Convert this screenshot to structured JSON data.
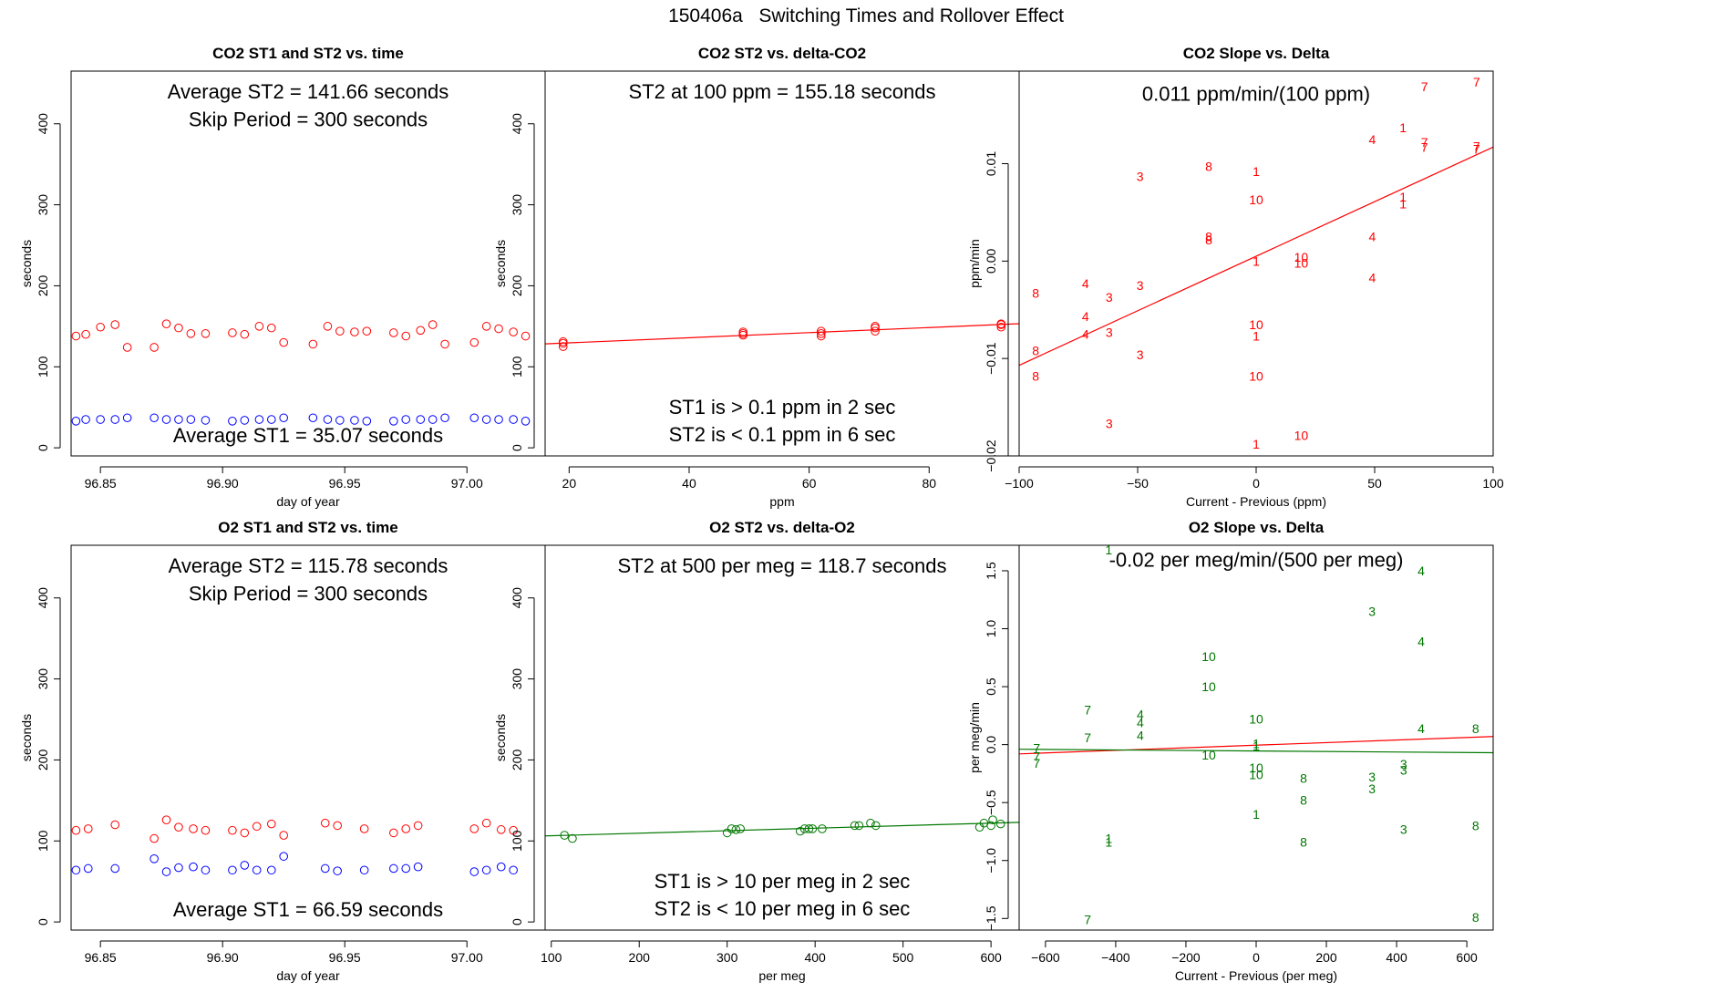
{
  "page_title": "150406a   Switching Times and Rollover Effect",
  "colors": {
    "red": "#ff0000",
    "blue": "#0000ff",
    "green": "#007700",
    "axis": "#000000"
  },
  "chart_data": [
    {
      "id": "co2-time",
      "type": "scatter",
      "title": "CO2 ST1 and ST2 vs. time",
      "xlabel": "day of year",
      "ylabel": "seconds",
      "xlim": [
        96.838,
        97.032
      ],
      "ylim": [
        -10,
        465
      ],
      "xticks": [
        96.85,
        96.9,
        96.95,
        97.0
      ],
      "xtick_labels": [
        "96.85",
        "96.90",
        "96.95",
        "97.00"
      ],
      "yticks": [
        0,
        100,
        200,
        300,
        400
      ],
      "ytick_labels": [
        "0",
        "100",
        "200",
        "300",
        "400"
      ],
      "annotations": [
        {
          "text": "Average ST2 =  141.66  seconds",
          "x": 96.935,
          "y": 440
        },
        {
          "text": "Skip Period =  300  seconds",
          "x": 96.935,
          "y": 406
        },
        {
          "text": "Average ST1 =  35.07  seconds",
          "x": 96.935,
          "y": 16
        }
      ],
      "series": [
        {
          "name": "ST2",
          "color": "#ff0000",
          "marker": "circle",
          "x": [
            96.84,
            96.844,
            96.85,
            96.856,
            96.861,
            96.872,
            96.877,
            96.882,
            96.887,
            96.893,
            96.904,
            96.909,
            96.915,
            96.92,
            96.925,
            96.937,
            96.943,
            96.948,
            96.954,
            96.959,
            96.97,
            96.975,
            96.981,
            96.986,
            96.991,
            97.003,
            97.008,
            97.013,
            97.019,
            97.024
          ],
          "y": [
            138,
            140,
            149,
            152,
            124,
            124,
            153,
            148,
            141,
            141,
            142,
            140,
            150,
            148,
            130,
            128,
            150,
            144,
            143,
            144,
            142,
            138,
            145,
            152,
            128,
            130,
            150,
            147,
            143,
            138
          ]
        },
        {
          "name": "ST1",
          "color": "#0000ff",
          "marker": "circle",
          "x": [
            96.84,
            96.844,
            96.85,
            96.856,
            96.861,
            96.872,
            96.877,
            96.882,
            96.887,
            96.893,
            96.904,
            96.909,
            96.915,
            96.92,
            96.925,
            96.937,
            96.943,
            96.948,
            96.954,
            96.959,
            96.97,
            96.975,
            96.981,
            96.986,
            96.991,
            97.003,
            97.008,
            97.013,
            97.019,
            97.024
          ],
          "y": [
            33,
            35,
            35,
            35,
            37,
            37,
            35,
            35,
            35,
            34,
            33,
            34,
            35,
            35,
            37,
            37,
            35,
            34,
            34,
            33,
            33,
            35,
            35,
            35,
            37,
            37,
            35,
            35,
            35,
            33
          ]
        }
      ]
    },
    {
      "id": "co2-st2-delta",
      "type": "scatter",
      "title": "CO2 ST2 vs. delta-CO2",
      "xlabel": "ppm",
      "ylabel": "seconds",
      "xlim": [
        16,
        95
      ],
      "ylim": [
        -10,
        465
      ],
      "xticks": [
        20,
        40,
        60,
        80
      ],
      "xtick_labels": [
        "20",
        "40",
        "60",
        "80"
      ],
      "yticks": [
        0,
        100,
        200,
        300,
        400
      ],
      "ytick_labels": [
        "0",
        "100",
        "200",
        "300",
        "400"
      ],
      "annotations": [
        {
          "text": "ST2 at 100 ppm =  155.18  seconds",
          "x": 55.5,
          "y": 440
        },
        {
          "text": "ST1 is > 0.1 ppm in 2 sec",
          "x": 55.5,
          "y": 51
        },
        {
          "text": "ST2 is < 0.1 ppm in 6 sec",
          "x": 55.5,
          "y": 17
        }
      ],
      "series": [
        {
          "name": "ST2",
          "color": "#ff0000",
          "marker": "circle",
          "x": [
            19,
            19,
            19,
            49,
            49,
            49,
            62,
            62,
            62,
            71,
            71,
            71,
            92,
            92,
            92
          ],
          "y": [
            125,
            129,
            131,
            139,
            141,
            143,
            138,
            141,
            144,
            144,
            148,
            150,
            149,
            152,
            153
          ]
        }
      ],
      "lines": [
        {
          "color": "#ff0000",
          "x": [
            16,
            95
          ],
          "y": [
            128.3,
            153.2
          ]
        }
      ]
    },
    {
      "id": "co2-slope",
      "type": "scatter",
      "title": "CO2 Slope vs. Delta",
      "xlabel": "Current - Previous (ppm)",
      "ylabel": "ppm/min",
      "xlim": [
        -100,
        100
      ],
      "ylim": [
        -0.02,
        0.0195
      ],
      "xticks": [
        -100,
        -50,
        0,
        50,
        100
      ],
      "xtick_labels": [
        "−100",
        "−50",
        "0",
        "50",
        "100"
      ],
      "yticks": [
        -0.02,
        -0.01,
        0.0,
        0.01
      ],
      "ytick_labels": [
        "−0.02",
        "−0.01",
        "0.00",
        "0.01"
      ],
      "annotations": [
        {
          "text": "0.011  ppm/min/(100 ppm)",
          "x": 0,
          "y": 0.0172
        }
      ],
      "series": [
        {
          "name": "labels",
          "color": "#ff0000",
          "marker": "text",
          "x": [
            -93,
            -93,
            -93,
            -72,
            -72,
            -72,
            -62,
            -62,
            -62,
            -49,
            -49,
            -49,
            -20,
            -20,
            -20,
            0,
            0,
            0,
            0,
            0,
            0,
            0,
            19,
            19,
            19,
            49,
            49,
            49,
            62,
            62,
            62,
            71,
            71,
            71,
            93,
            93,
            93
          ],
          "y": [
            -0.0033,
            -0.0092,
            -0.0118,
            -0.0023,
            -0.0057,
            -0.0075,
            -0.0037,
            -0.0073,
            -0.0167,
            -0.0025,
            -0.0096,
            0.0087,
            0.0097,
            0.0022,
            0.0025,
            0.0092,
            0.0063,
            -0.0065,
            -0.0077,
            -0.0118,
            -0.0188,
            0.0,
            0.0004,
            -0.0002,
            -0.0179,
            0.0125,
            0.0025,
            -0.0017,
            0.0137,
            0.0066,
            0.0059,
            0.0179,
            0.0122,
            0.0117,
            0.0184,
            0.0118,
            0.0115
          ],
          "labels": [
            "8",
            "8",
            "8",
            "4",
            "4",
            "4",
            "3",
            "3",
            "3",
            "3",
            "3",
            "3",
            "8",
            "8",
            "8",
            "1",
            "10",
            "10",
            "1",
            "10",
            "1",
            "1",
            "10",
            "10",
            "10",
            "4",
            "4",
            "4",
            "1",
            "1",
            "1",
            "7",
            "7",
            "7",
            "7",
            "7",
            "7"
          ]
        }
      ],
      "lines": [
        {
          "color": "#ff0000",
          "x": [
            -100,
            100
          ],
          "y": [
            -0.0107,
            0.0117
          ]
        }
      ]
    },
    {
      "id": "o2-time",
      "type": "scatter",
      "title": "O2 ST1 and ST2 vs. time",
      "xlabel": "day of year",
      "ylabel": "seconds",
      "xlim": [
        96.838,
        97.032
      ],
      "ylim": [
        -10,
        465
      ],
      "xticks": [
        96.85,
        96.9,
        96.95,
        97.0
      ],
      "xtick_labels": [
        "96.85",
        "96.90",
        "96.95",
        "97.00"
      ],
      "yticks": [
        0,
        100,
        200,
        300,
        400
      ],
      "ytick_labels": [
        "0",
        "100",
        "200",
        "300",
        "400"
      ],
      "annotations": [
        {
          "text": "Average ST2 =  115.78  seconds",
          "x": 96.935,
          "y": 440
        },
        {
          "text": "Skip Period =  300  seconds",
          "x": 96.935,
          "y": 406
        },
        {
          "text": "Average ST1 =  66.59  seconds",
          "x": 96.935,
          "y": 16
        }
      ],
      "series": [
        {
          "name": "ST2",
          "color": "#ff0000",
          "marker": "circle",
          "x": [
            96.84,
            96.845,
            96.856,
            96.872,
            96.877,
            96.882,
            96.888,
            96.893,
            96.904,
            96.909,
            96.914,
            96.92,
            96.925,
            96.942,
            96.947,
            96.958,
            96.97,
            96.975,
            96.98,
            97.003,
            97.008,
            97.014,
            97.019
          ],
          "y": [
            113,
            115,
            120,
            103,
            126,
            117,
            115,
            113,
            113,
            110,
            118,
            121,
            107,
            122,
            119,
            115,
            110,
            115,
            119,
            115,
            122,
            114,
            113
          ]
        },
        {
          "name": "ST1",
          "color": "#0000ff",
          "marker": "circle",
          "x": [
            96.84,
            96.845,
            96.856,
            96.872,
            96.877,
            96.882,
            96.888,
            96.893,
            96.904,
            96.909,
            96.914,
            96.92,
            96.925,
            96.942,
            96.947,
            96.958,
            96.97,
            96.975,
            96.98,
            97.003,
            97.008,
            97.014,
            97.019
          ],
          "y": [
            64,
            66,
            66,
            78,
            62,
            67,
            68,
            64,
            64,
            70,
            64,
            64,
            81,
            66,
            63,
            64,
            66,
            66,
            68,
            62,
            64,
            68,
            64
          ]
        }
      ]
    },
    {
      "id": "o2-st2-delta",
      "type": "scatter",
      "title": "O2 ST2 vs. delta-O2",
      "xlabel": "per meg",
      "ylabel": "seconds",
      "xlim": [
        93,
        632
      ],
      "ylim": [
        -10,
        465
      ],
      "xticks": [
        100,
        200,
        300,
        400,
        500,
        600
      ],
      "xtick_labels": [
        "100",
        "200",
        "300",
        "400",
        "500",
        "600"
      ],
      "yticks": [
        0,
        100,
        200,
        300,
        400
      ],
      "ytick_labels": [
        "0",
        "100",
        "200",
        "300",
        "400"
      ],
      "annotations": [
        {
          "text": "ST2 at 500 per meg =  118.7  seconds",
          "x": 362.5,
          "y": 440
        },
        {
          "text": "ST1 is > 10 per meg in 2 sec",
          "x": 362.5,
          "y": 51
        },
        {
          "text": "ST2 is < 10 per meg in 6 sec",
          "x": 362.5,
          "y": 17
        }
      ],
      "series": [
        {
          "name": "ST2",
          "color": "#007700",
          "marker": "circle",
          "x": [
            115,
            124,
            300,
            305,
            310,
            315,
            383,
            388,
            393,
            397,
            408,
            445,
            450,
            463,
            469,
            587,
            592,
            600,
            602,
            611
          ],
          "y": [
            107,
            103,
            110,
            115,
            114,
            115,
            112,
            115,
            115,
            115,
            115,
            119,
            119,
            122,
            119,
            117,
            122,
            119,
            126,
            121
          ]
        }
      ],
      "lines": [
        {
          "color": "#007700",
          "x": [
            93,
            632
          ],
          "y": [
            106.2,
            123.0
          ]
        }
      ]
    },
    {
      "id": "o2-slope",
      "type": "scatter",
      "title": "O2 Slope vs. Delta",
      "xlabel": "Current - Previous (per meg)",
      "ylabel": "per meg/min",
      "xlim": [
        -675,
        675
      ],
      "ylim": [
        -1.6,
        1.72
      ],
      "xticks": [
        -600,
        -400,
        -200,
        0,
        200,
        400,
        600
      ],
      "xtick_labels": [
        "−600",
        "−400",
        "−200",
        "0",
        "200",
        "400",
        "600"
      ],
      "yticks": [
        -1.5,
        -1.0,
        -0.5,
        0.0,
        0.5,
        1.0,
        1.5
      ],
      "ytick_labels": [
        "−1.5",
        "−1.0",
        "−0.5",
        "0.0",
        "0.5",
        "1.0",
        "1.5"
      ],
      "annotations": [
        {
          "text": "-0.02  per meg/min/(500 per meg)",
          "x": 0,
          "y": 1.6
        }
      ],
      "series": [
        {
          "name": "labels",
          "color": "#007700",
          "marker": "text",
          "x": [
            -625,
            -625,
            -625,
            -480,
            -480,
            -480,
            -420,
            -420,
            -420,
            -330,
            -330,
            -330,
            -135,
            -135,
            -135,
            0,
            0,
            0,
            0,
            0,
            0,
            135,
            135,
            135,
            330,
            330,
            330,
            420,
            420,
            420,
            470,
            470,
            470,
            625,
            625,
            625
          ],
          "y": [
            -0.03,
            -0.1,
            -0.16,
            0.3,
            0.06,
            -1.51,
            -0.81,
            -0.84,
            1.68,
            0.26,
            0.19,
            0.08,
            0.76,
            0.5,
            -0.09,
            0.22,
            0.01,
            -0.01,
            -0.2,
            -0.26,
            -0.6,
            -0.29,
            -0.48,
            -0.84,
            1.15,
            -0.28,
            -0.38,
            -0.17,
            -0.22,
            -0.73,
            1.5,
            0.89,
            0.14,
            0.14,
            -0.7,
            -1.49
          ],
          "labels": [
            "7",
            "7",
            "7",
            "7",
            "7",
            "7",
            "1",
            "1",
            "1",
            "4",
            "4",
            "4",
            "10",
            "10",
            "10",
            "10",
            "1",
            "1",
            "10",
            "10",
            "1",
            "8",
            "8",
            "8",
            "3",
            "3",
            "3",
            "3",
            "3",
            "3",
            "4",
            "4",
            "4",
            "8",
            "8",
            "8"
          ]
        }
      ],
      "lines": [
        {
          "color": "#ff0000",
          "x": [
            -675,
            675
          ],
          "y": [
            -0.08,
            0.07
          ]
        },
        {
          "color": "#007700",
          "x": [
            -675,
            675
          ],
          "y": [
            -0.04,
            -0.07
          ]
        }
      ]
    }
  ]
}
